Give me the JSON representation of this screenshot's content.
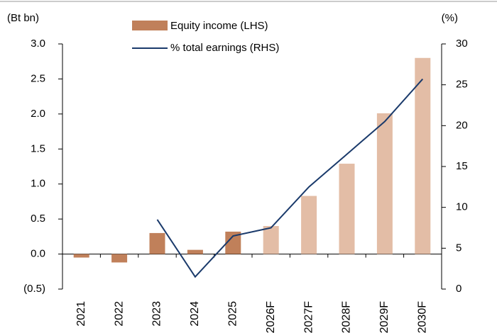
{
  "chart_data": {
    "type": "bar_line",
    "y_label": "(Bt bn)",
    "y2_label": "(%)",
    "categories": [
      "2021",
      "2022",
      "2023",
      "2024",
      "2025",
      "2026F",
      "2027F",
      "2028F",
      "2029F",
      "2030F"
    ],
    "series": [
      {
        "name": "Equity income (LHS)",
        "type": "bar",
        "color": "#c0805a",
        "colors": [
          "#c0805a",
          "#c0805a",
          "#c0805a",
          "#c0805a",
          "#c0805a",
          "#e3bda6",
          "#e3bda6",
          "#e3bda6",
          "#e3bda6",
          "#e3bda6"
        ],
        "values": [
          -0.05,
          -0.12,
          0.3,
          0.06,
          0.32,
          0.4,
          0.83,
          1.29,
          2.01,
          2.8
        ]
      },
      {
        "name": "% total earnings (RHS)",
        "type": "line",
        "axis": "y2",
        "color": "#1a3a6b",
        "values": [
          null,
          null,
          8.5,
          1.5,
          6.5,
          7.5,
          12.5,
          16.5,
          20.5,
          25.7
        ]
      }
    ],
    "ylim": [
      -0.5,
      3.0
    ],
    "yticks": [
      {
        "value": -0.5,
        "label": "(0.5)"
      },
      {
        "value": 0,
        "label": "0.0"
      },
      0.5,
      {
        "value": 1,
        "label": "1.0"
      },
      1.5,
      {
        "value": 2,
        "label": "2.0"
      },
      2.5,
      {
        "value": 3,
        "label": "3.0"
      }
    ],
    "y2lim": [
      0,
      30
    ],
    "y2ticks": [
      0,
      5,
      10,
      15,
      20,
      25,
      30
    ],
    "grid": false,
    "legend": "top"
  }
}
